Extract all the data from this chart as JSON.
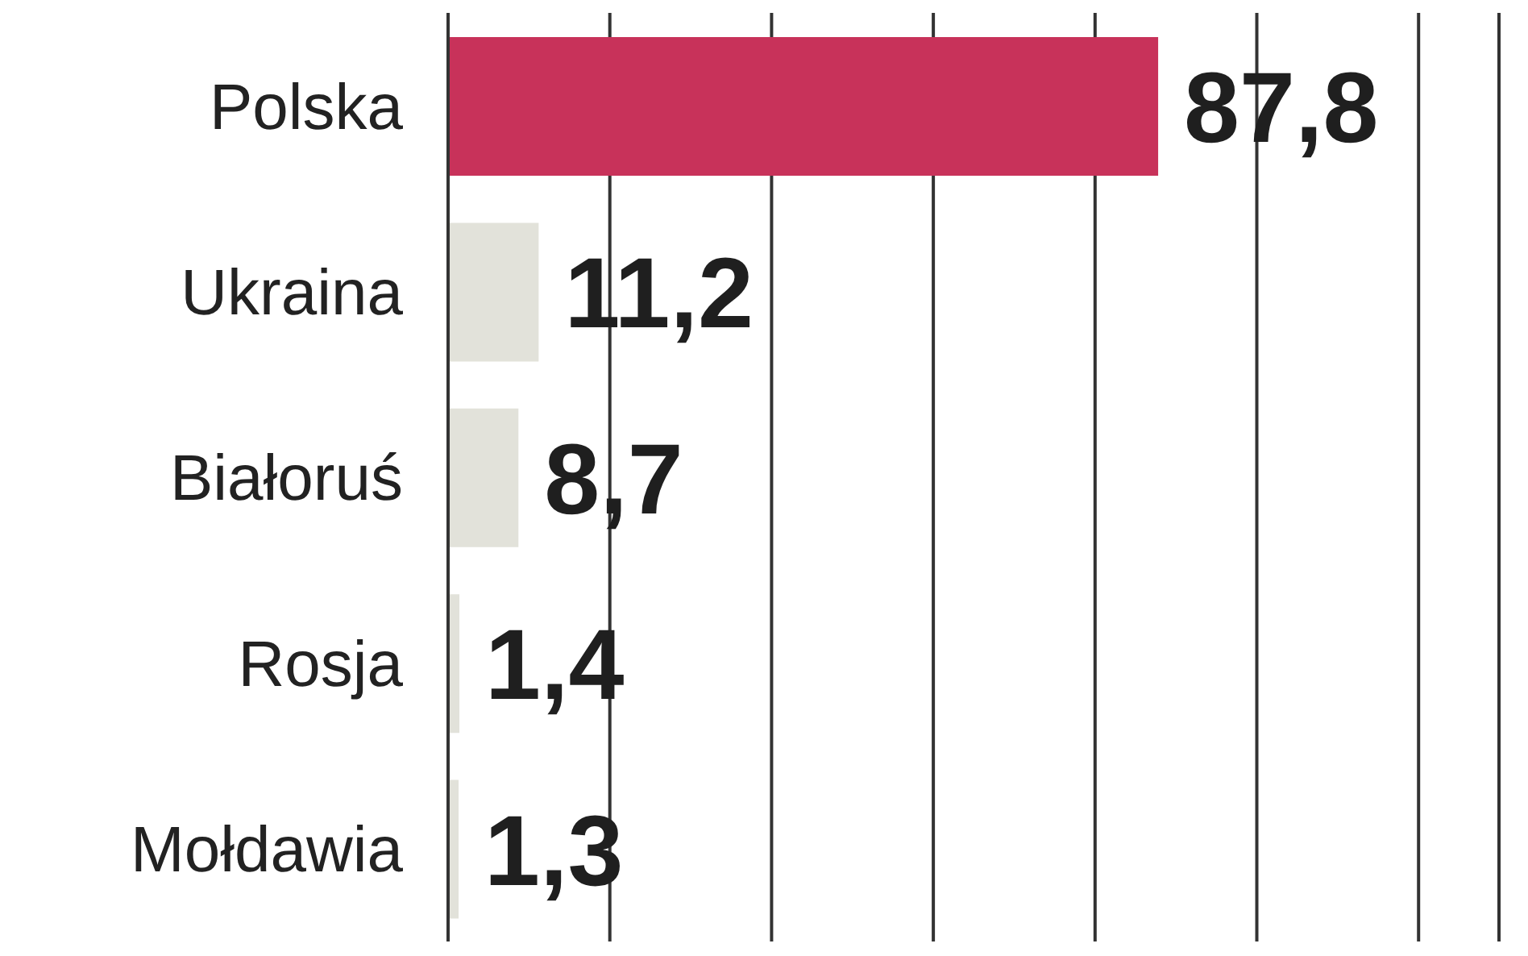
{
  "chart_data": {
    "type": "bar",
    "orientation": "horizontal",
    "categories": [
      "Polska",
      "Ukraina",
      "Białoruś",
      "Rosja",
      "Mołdawia"
    ],
    "values": [
      87.8,
      11.2,
      8.7,
      1.4,
      1.3
    ],
    "value_labels": [
      "87,8",
      "11,2",
      "8,7",
      "1,4",
      "1,3"
    ],
    "colors": [
      "#c8325a",
      "#e2e2da",
      "#e2e2da",
      "#e2e2da",
      "#e2e2da"
    ],
    "grid": "x",
    "tick_labels": "y"
  }
}
